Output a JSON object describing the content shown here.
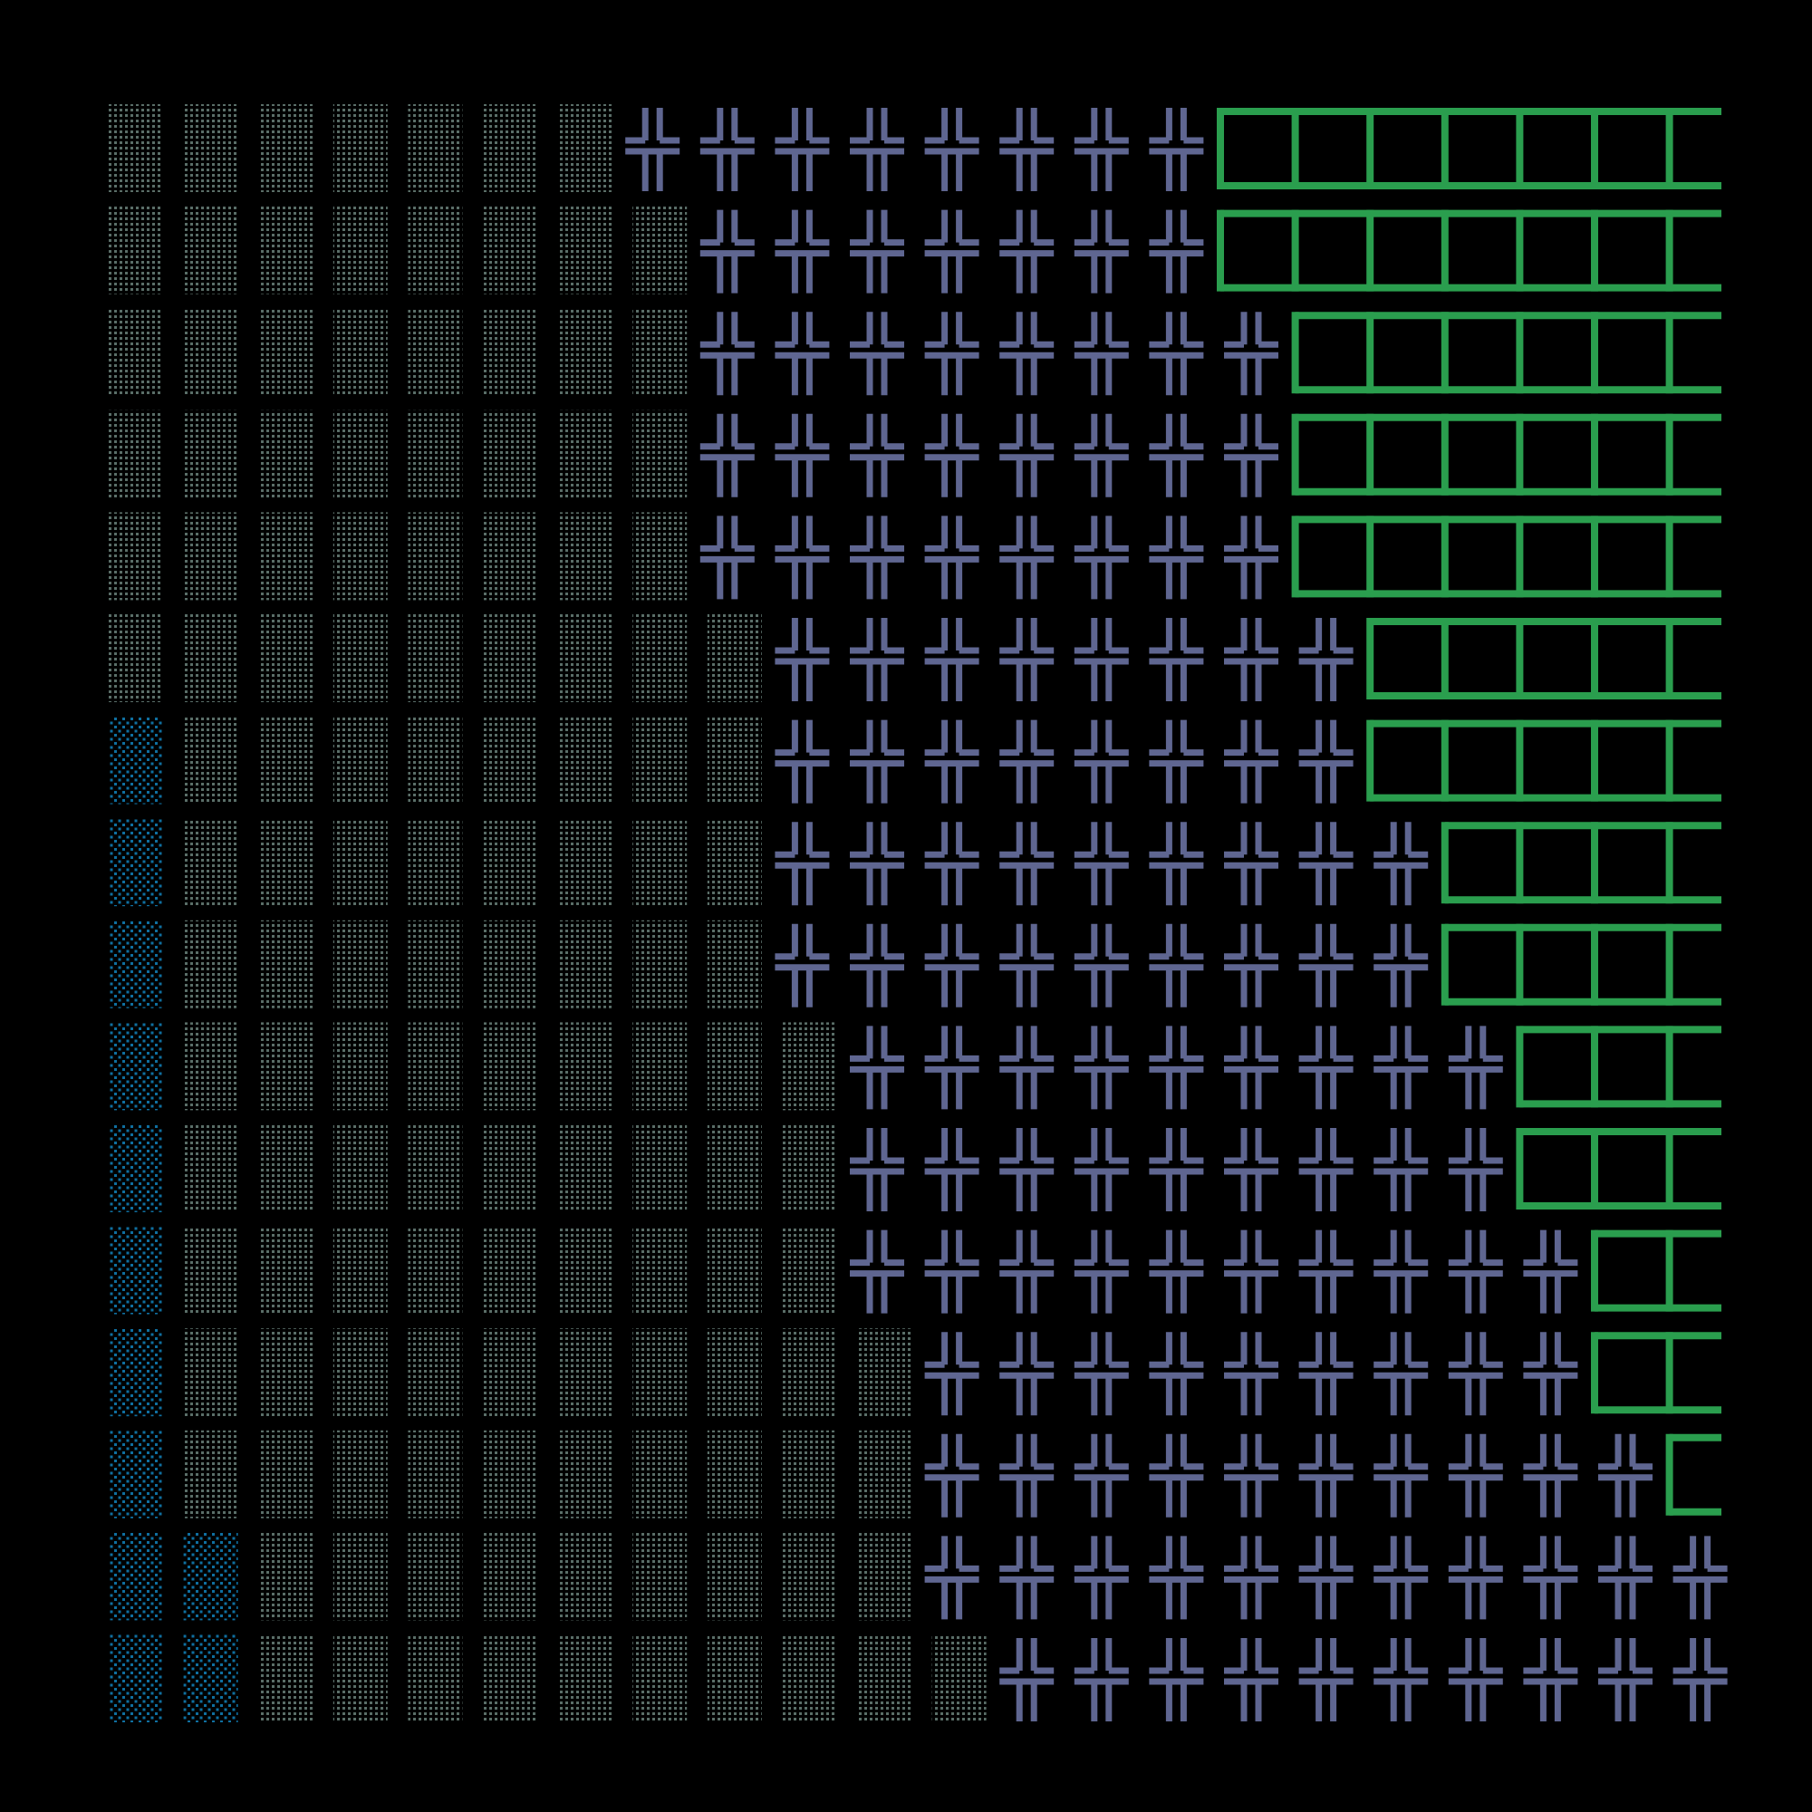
{
  "background_color": "#000000",
  "palette": {
    "dither": "#5a6e68",
    "dither_blue": "#0f6fa0",
    "cross": "#5f6691",
    "box": "#2a9e4e"
  },
  "grid": {
    "rows": 16,
    "cols": 22
  },
  "tile_types": [
    "dither-dots",
    "blue-dither-dots",
    "double-cross-glyph",
    "green-box-glyph"
  ],
  "rows": [
    {
      "blue": 0,
      "dots": 7,
      "crosses": 8,
      "boxes": 7
    },
    {
      "blue": 0,
      "dots": 8,
      "crosses": 7,
      "boxes": 7
    },
    {
      "blue": 0,
      "dots": 8,
      "crosses": 8,
      "boxes": 6
    },
    {
      "blue": 0,
      "dots": 8,
      "crosses": 8,
      "boxes": 6
    },
    {
      "blue": 0,
      "dots": 8,
      "crosses": 8,
      "boxes": 6
    },
    {
      "blue": 0,
      "dots": 9,
      "crosses": 8,
      "boxes": 5
    },
    {
      "blue": 1,
      "dots": 8,
      "crosses": 8,
      "boxes": 5
    },
    {
      "blue": 1,
      "dots": 8,
      "crosses": 9,
      "boxes": 4
    },
    {
      "blue": 1,
      "dots": 8,
      "crosses": 9,
      "boxes": 4
    },
    {
      "blue": 1,
      "dots": 9,
      "crosses": 9,
      "boxes": 3
    },
    {
      "blue": 1,
      "dots": 9,
      "crosses": 9,
      "boxes": 3
    },
    {
      "blue": 1,
      "dots": 9,
      "crosses": 10,
      "boxes": 2
    },
    {
      "blue": 1,
      "dots": 10,
      "crosses": 9,
      "boxes": 2
    },
    {
      "blue": 1,
      "dots": 10,
      "crosses": 10,
      "boxes": 1
    },
    {
      "blue": 2,
      "dots": 9,
      "crosses": 11,
      "boxes": 0
    },
    {
      "blue": 2,
      "dots": 10,
      "crosses": 10,
      "boxes": 0
    }
  ]
}
